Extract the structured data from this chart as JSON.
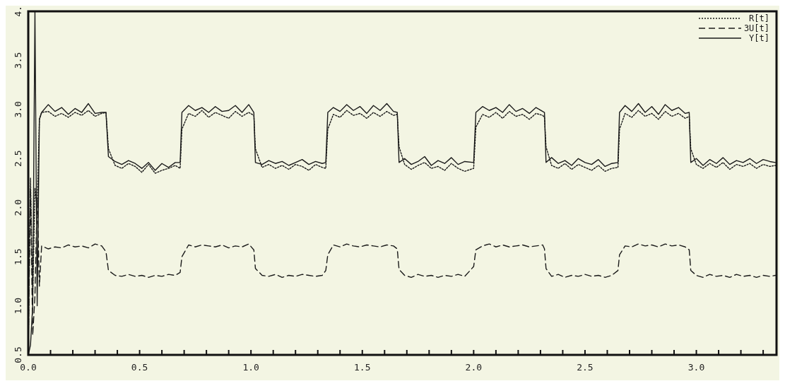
{
  "chart_data": {
    "type": "line",
    "xlim": [
      0,
      3.36
    ],
    "ylim": [
      0.5,
      4
    ],
    "xticks": [
      {
        "value": 0,
        "label": "0.0"
      },
      {
        "value": 0.1,
        "label": null
      },
      {
        "value": 0.2,
        "label": null
      },
      {
        "value": 0.3,
        "label": null
      },
      {
        "value": 0.4,
        "label": null
      },
      {
        "value": 0.5,
        "label": "0.5"
      },
      {
        "value": 0.6,
        "label": null
      },
      {
        "value": 0.7,
        "label": null
      },
      {
        "value": 0.8,
        "label": null
      },
      {
        "value": 0.9,
        "label": null
      },
      {
        "value": 1,
        "label": "1.0"
      },
      {
        "value": 1.1,
        "label": null
      },
      {
        "value": 1.2,
        "label": null
      },
      {
        "value": 1.3,
        "label": null
      },
      {
        "value": 1.4,
        "label": null
      },
      {
        "value": 1.5,
        "label": "1.5"
      },
      {
        "value": 1.6,
        "label": null
      },
      {
        "value": 1.7,
        "label": null
      },
      {
        "value": 1.8,
        "label": null
      },
      {
        "value": 1.9,
        "label": null
      },
      {
        "value": 2,
        "label": "2.0"
      },
      {
        "value": 2.1,
        "label": null
      },
      {
        "value": 2.2,
        "label": null
      },
      {
        "value": 2.3,
        "label": null
      },
      {
        "value": 2.4,
        "label": null
      },
      {
        "value": 2.5,
        "label": "2.5"
      },
      {
        "value": 2.6,
        "label": null
      },
      {
        "value": 2.7,
        "label": null
      },
      {
        "value": 2.8,
        "label": null
      },
      {
        "value": 2.9,
        "label": null
      },
      {
        "value": 3,
        "label": "3.0"
      },
      {
        "value": 3.1,
        "label": null
      },
      {
        "value": 3.2,
        "label": null
      },
      {
        "value": 3.3,
        "label": null
      }
    ],
    "yticks": [
      0.5,
      {
        "value": 1,
        "label": "1.0"
      },
      1.5,
      {
        "value": 2,
        "label": "2.0"
      },
      2.5,
      {
        "value": 3,
        "label": "3.0"
      },
      3.5,
      {
        "value": 4,
        "label": "4."
      }
    ],
    "x": [
      0,
      0.01,
      0.02,
      0.03,
      0.04,
      0.05,
      0.06,
      0.09,
      0.12,
      0.15,
      0.18,
      0.21,
      0.24,
      0.27,
      0.3,
      0.33,
      0.349,
      0.36,
      0.39,
      0.42,
      0.45,
      0.48,
      0.51,
      0.54,
      0.57,
      0.6,
      0.63,
      0.66,
      0.682,
      0.69,
      0.72,
      0.75,
      0.78,
      0.81,
      0.84,
      0.87,
      0.9,
      0.93,
      0.96,
      0.99,
      1.013,
      1.02,
      1.05,
      1.08,
      1.11,
      1.14,
      1.17,
      1.2,
      1.23,
      1.26,
      1.29,
      1.32,
      1.336,
      1.345,
      1.37,
      1.4,
      1.43,
      1.46,
      1.49,
      1.52,
      1.55,
      1.58,
      1.61,
      1.64,
      1.657,
      1.665,
      1.69,
      1.72,
      1.75,
      1.78,
      1.81,
      1.84,
      1.87,
      1.9,
      1.93,
      1.96,
      2.0,
      2.01,
      2.04,
      2.07,
      2.1,
      2.13,
      2.16,
      2.19,
      2.22,
      2.25,
      2.28,
      2.31,
      2.318,
      2.325,
      2.35,
      2.38,
      2.41,
      2.44,
      2.47,
      2.5,
      2.53,
      2.56,
      2.59,
      2.62,
      2.648,
      2.655,
      2.68,
      2.71,
      2.74,
      2.77,
      2.8,
      2.83,
      2.86,
      2.89,
      2.92,
      2.95,
      2.968,
      2.975,
      3.0,
      3.03,
      3.06,
      3.09,
      3.12,
      3.15,
      3.18,
      3.21,
      3.24,
      3.27,
      3.3,
      3.33,
      3.355
    ],
    "series": [
      {
        "name": "R[t]",
        "color": "#1a1a1a",
        "line_style": "dotted",
        "values": [
          0.6,
          2.3,
          1.1,
          2.2,
          2.0,
          2.9,
          2.97,
          2.98,
          2.93,
          2.96,
          2.92,
          2.97,
          2.94,
          2.99,
          2.93,
          2.96,
          2.97,
          2.6,
          2.43,
          2.4,
          2.45,
          2.42,
          2.36,
          2.44,
          2.35,
          2.38,
          2.4,
          2.43,
          2.4,
          2.8,
          2.96,
          2.93,
          2.99,
          2.92,
          2.97,
          2.94,
          2.91,
          2.98,
          2.93,
          2.97,
          2.94,
          2.6,
          2.41,
          2.44,
          2.4,
          2.43,
          2.39,
          2.44,
          2.42,
          2.38,
          2.44,
          2.41,
          2.4,
          2.8,
          2.95,
          2.92,
          2.99,
          2.94,
          2.96,
          2.91,
          2.97,
          2.93,
          2.98,
          2.94,
          2.95,
          2.62,
          2.44,
          2.39,
          2.43,
          2.46,
          2.4,
          2.42,
          2.38,
          2.45,
          2.4,
          2.37,
          2.4,
          2.82,
          2.95,
          2.92,
          2.97,
          2.91,
          2.98,
          2.93,
          2.95,
          2.9,
          2.96,
          2.94,
          2.92,
          2.62,
          2.43,
          2.4,
          2.45,
          2.39,
          2.44,
          2.41,
          2.38,
          2.43,
          2.37,
          2.4,
          2.41,
          2.8,
          2.96,
          2.92,
          2.99,
          2.93,
          2.96,
          2.9,
          2.98,
          2.93,
          2.96,
          2.91,
          2.93,
          2.6,
          2.44,
          2.4,
          2.45,
          2.41,
          2.46,
          2.39,
          2.44,
          2.42,
          2.45,
          2.4,
          2.44,
          2.42,
          2.43
        ]
      },
      {
        "name": "3U[t]",
        "color": "#1a1a1a",
        "line_style": "dashed",
        "values": [
          0.6,
          2.2,
          0.7,
          1.1,
          2.1,
          1.2,
          1.61,
          1.58,
          1.6,
          1.59,
          1.62,
          1.6,
          1.61,
          1.59,
          1.63,
          1.61,
          1.55,
          1.36,
          1.31,
          1.3,
          1.32,
          1.3,
          1.31,
          1.29,
          1.31,
          1.3,
          1.32,
          1.31,
          1.34,
          1.5,
          1.62,
          1.6,
          1.62,
          1.61,
          1.6,
          1.62,
          1.59,
          1.61,
          1.6,
          1.63,
          1.57,
          1.38,
          1.31,
          1.3,
          1.32,
          1.29,
          1.31,
          1.3,
          1.32,
          1.31,
          1.3,
          1.31,
          1.36,
          1.52,
          1.62,
          1.6,
          1.63,
          1.61,
          1.6,
          1.62,
          1.61,
          1.6,
          1.62,
          1.61,
          1.58,
          1.37,
          1.31,
          1.29,
          1.32,
          1.3,
          1.31,
          1.29,
          1.31,
          1.3,
          1.32,
          1.3,
          1.4,
          1.57,
          1.61,
          1.63,
          1.6,
          1.62,
          1.6,
          1.61,
          1.62,
          1.6,
          1.61,
          1.62,
          1.58,
          1.38,
          1.3,
          1.32,
          1.29,
          1.31,
          1.3,
          1.32,
          1.3,
          1.31,
          1.29,
          1.31,
          1.36,
          1.52,
          1.61,
          1.6,
          1.63,
          1.61,
          1.62,
          1.6,
          1.63,
          1.61,
          1.62,
          1.6,
          1.57,
          1.36,
          1.31,
          1.29,
          1.32,
          1.3,
          1.31,
          1.29,
          1.32,
          1.3,
          1.31,
          1.29,
          1.31,
          1.3,
          1.31
        ]
      },
      {
        "name": "Y[t]",
        "color": "#1a1a1a",
        "line_style": "solid",
        "values": [
          0.5,
          0.6,
          1.0,
          4.0,
          1.0,
          2.9,
          2.97,
          3.05,
          2.98,
          3.02,
          2.95,
          3.01,
          2.97,
          3.06,
          2.96,
          2.97,
          2.97,
          2.52,
          2.47,
          2.44,
          2.48,
          2.45,
          2.4,
          2.46,
          2.38,
          2.45,
          2.41,
          2.46,
          2.46,
          2.97,
          3.04,
          2.99,
          3.02,
          2.97,
          3.03,
          2.98,
          2.99,
          3.04,
          2.97,
          3.05,
          2.97,
          2.46,
          2.44,
          2.48,
          2.45,
          2.47,
          2.43,
          2.46,
          2.49,
          2.44,
          2.47,
          2.45,
          2.46,
          2.97,
          3.02,
          2.98,
          3.05,
          2.99,
          3.03,
          2.96,
          3.04,
          2.99,
          3.06,
          2.98,
          2.97,
          2.46,
          2.5,
          2.44,
          2.47,
          2.52,
          2.43,
          2.48,
          2.45,
          2.51,
          2.44,
          2.47,
          2.46,
          2.97,
          3.03,
          2.99,
          3.02,
          2.97,
          3.05,
          2.98,
          3.01,
          2.96,
          3.02,
          2.98,
          2.97,
          2.46,
          2.51,
          2.45,
          2.48,
          2.43,
          2.5,
          2.46,
          2.44,
          2.49,
          2.42,
          2.45,
          2.46,
          2.97,
          3.04,
          2.98,
          3.06,
          2.97,
          3.03,
          2.95,
          3.05,
          2.99,
          3.02,
          2.96,
          2.97,
          2.46,
          2.5,
          2.43,
          2.49,
          2.45,
          2.51,
          2.44,
          2.48,
          2.46,
          2.5,
          2.45,
          2.49,
          2.47,
          2.46
        ]
      }
    ],
    "legend": "top right",
    "marker": "none",
    "grid": false
  }
}
